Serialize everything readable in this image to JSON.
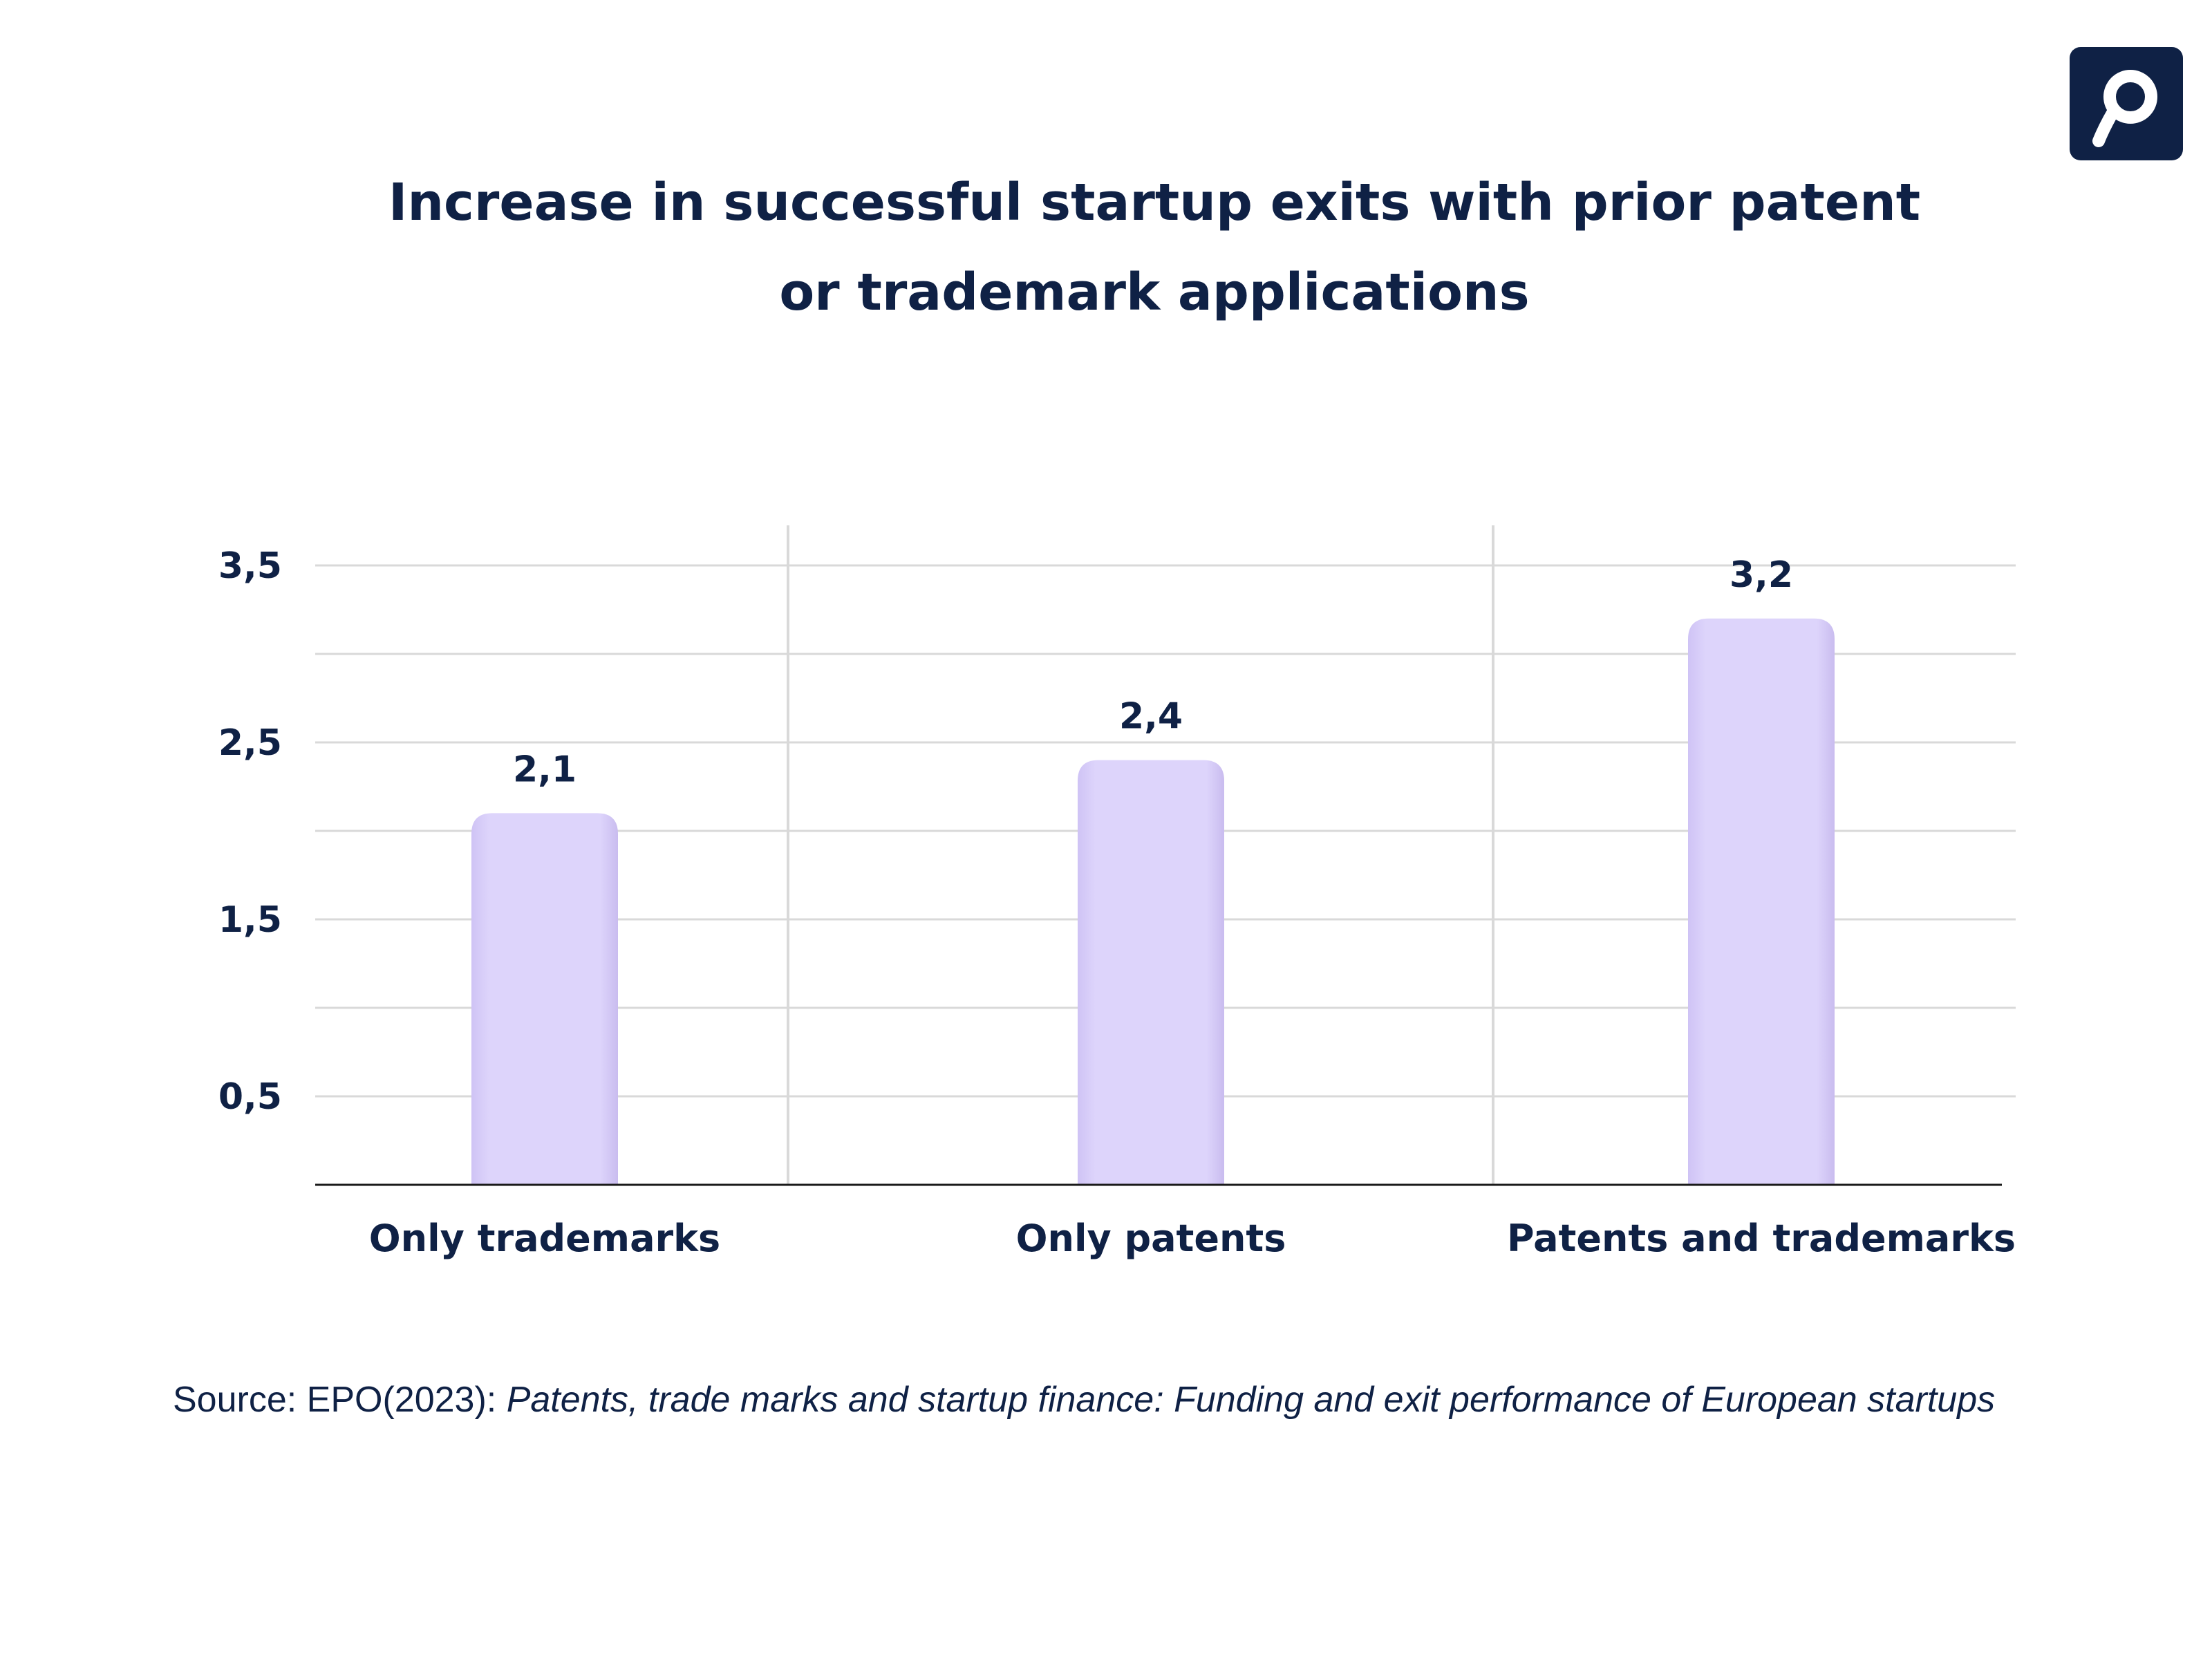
{
  "brand": {
    "logo_icon": "p-logo-icon",
    "logo_bg": "#0f2145",
    "logo_fg": "#ffffff"
  },
  "title_lines": [
    "Increase in successful startup exits with prior patent",
    "or trademark applications"
  ],
  "chart_data": {
    "type": "bar",
    "categories": [
      "Only trademarks",
      "Only patents",
      "Patents and trademarks"
    ],
    "values": [
      2.1,
      2.4,
      3.2
    ],
    "value_labels": [
      "2,1",
      "2,4",
      "3,2"
    ],
    "ytick_values": [
      0.5,
      1.5,
      2.5,
      3.5
    ],
    "ytick_labels": [
      "0,5",
      "1,5",
      "2,5",
      "3,5"
    ],
    "gridlines": [
      0.5,
      1.0,
      1.5,
      2.0,
      2.5,
      3.0,
      3.5
    ],
    "ylim": [
      0,
      3.5
    ],
    "grid": true,
    "bar_color": "#ddd4fb",
    "bar_edge_color": "#c8bbf0",
    "text_color": "#0f2145",
    "grid_color": "#d9d9d9"
  },
  "source": {
    "prefix": "Source: EPO(2023): ",
    "title": "Patents, trade marks and startup finance: Funding and exit performance of European startups"
  }
}
